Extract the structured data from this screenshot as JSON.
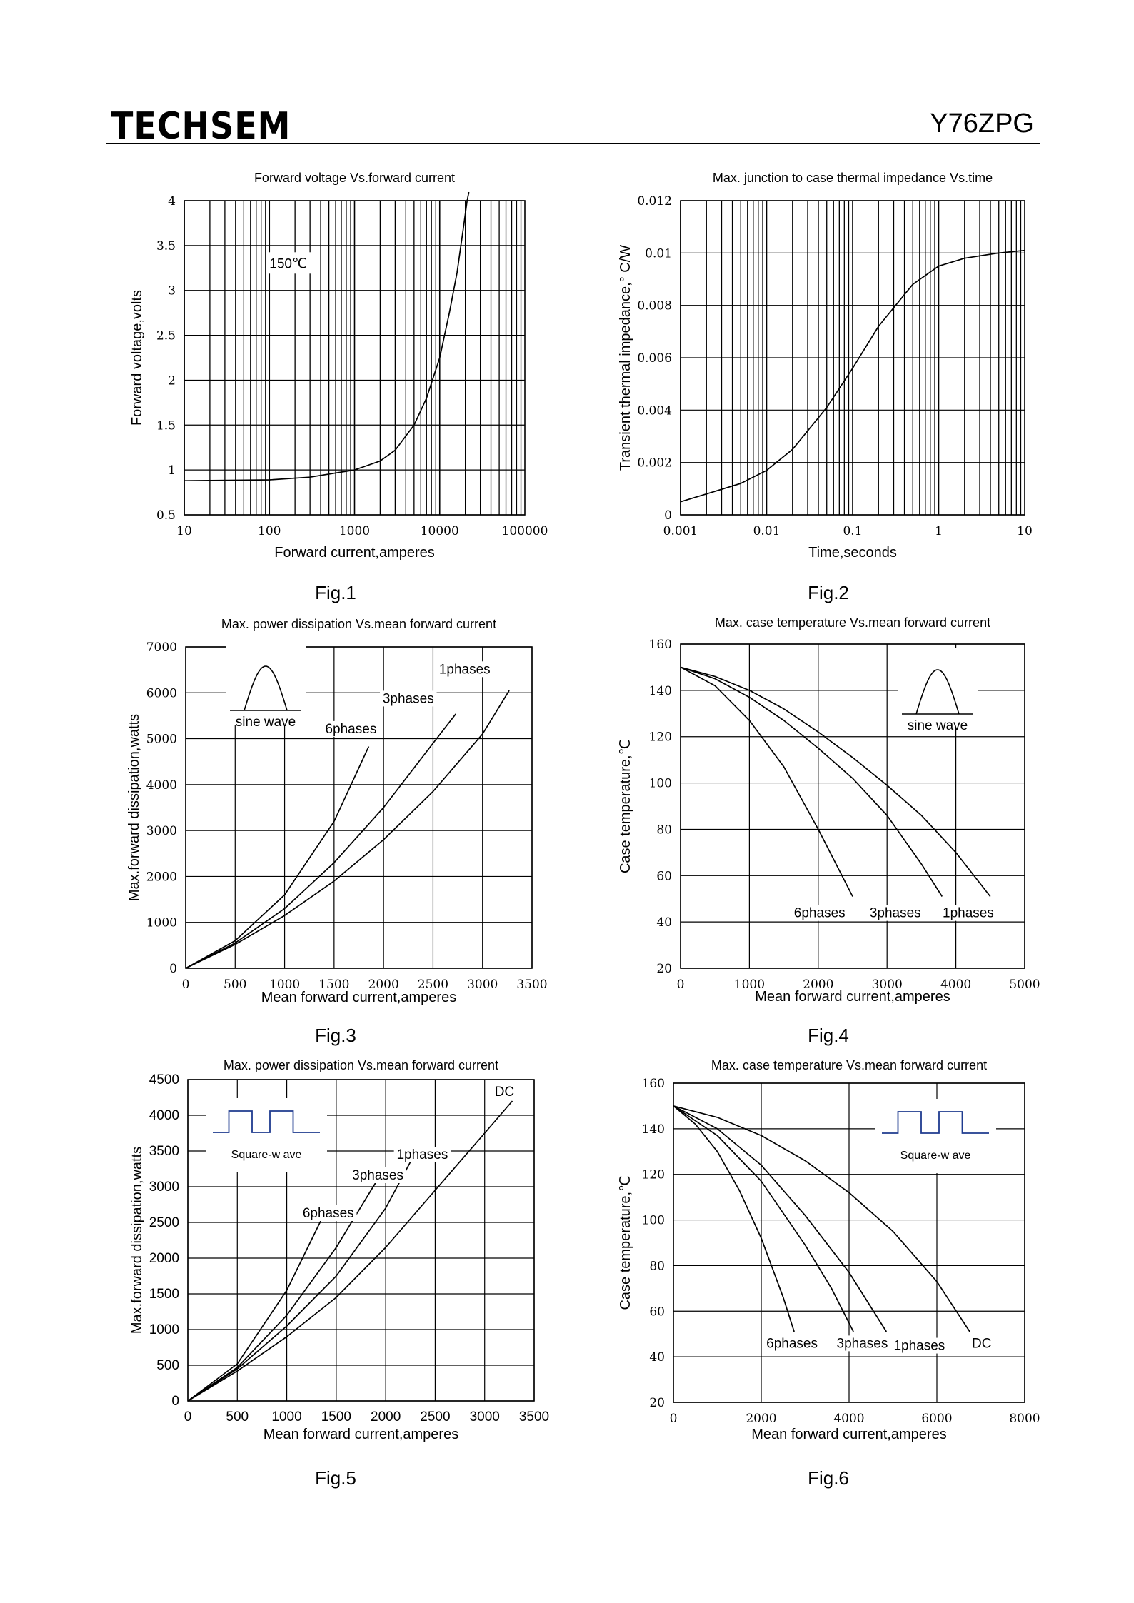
{
  "header": {
    "brand": "TECHSEM",
    "model": "Y76ZPG"
  },
  "chart_data": [
    {
      "id": "fig1",
      "type": "line",
      "caption": "Fig.1",
      "title": "Forward  voltage  Vs.forward  current",
      "xlabel": "Forward  current,amperes",
      "ylabel": "Forward  voltage,volts",
      "xscale": "log",
      "xlim": [
        10,
        100000
      ],
      "ylim": [
        0.5,
        4
      ],
      "xticks": [
        "10",
        "100",
        "1000",
        "10000",
        "100000"
      ],
      "yticks": [
        "0.5",
        "1",
        "1.5",
        "2",
        "2.5",
        "3",
        "3.5",
        "4"
      ],
      "grid": true,
      "annotations": [
        {
          "text": "150℃",
          "x": 100,
          "y": 3.25
        }
      ],
      "series": [
        {
          "name": "",
          "x": [
            10,
            100,
            300,
            1000,
            2000,
            3000,
            5000,
            7000,
            10000,
            13000,
            16000,
            19000,
            21000,
            22000
          ],
          "y": [
            0.88,
            0.89,
            0.92,
            1.0,
            1.1,
            1.22,
            1.5,
            1.8,
            2.25,
            2.75,
            3.2,
            3.7,
            4.0,
            4.15
          ]
        }
      ]
    },
    {
      "id": "fig2",
      "type": "line",
      "caption": "Fig.2",
      "title": "Max. junction  to  case  thermal  impedance  Vs.time",
      "xlabel": "Time,seconds",
      "ylabel": "Transient  thermal  impedance,°  C/W",
      "xscale": "log",
      "xlim": [
        0.001,
        10
      ],
      "ylim": [
        0,
        0.012
      ],
      "xticks": [
        "0.001",
        "0.01",
        "0.1",
        "1",
        "10"
      ],
      "yticks": [
        "0",
        "0.002",
        "0.004",
        "0.006",
        "0.008",
        "0.01",
        "0.012"
      ],
      "grid": true,
      "series": [
        {
          "name": "",
          "x": [
            0.001,
            0.002,
            0.005,
            0.01,
            0.02,
            0.05,
            0.1,
            0.2,
            0.5,
            1,
            2,
            5,
            10
          ],
          "y": [
            0.0005,
            0.0008,
            0.0012,
            0.0017,
            0.0025,
            0.0041,
            0.0056,
            0.0072,
            0.0088,
            0.0095,
            0.0098,
            0.01,
            0.0101
          ]
        }
      ]
    },
    {
      "id": "fig3",
      "type": "line",
      "caption": "Fig.3",
      "title": "Max. power  dissipation  Vs.mean  forward  current",
      "xlabel": "Mean  forward   current,amperes",
      "ylabel": "Max.forward  dissipation,watts",
      "xlim": [
        0,
        3500
      ],
      "ylim": [
        0,
        7000
      ],
      "xticks": [
        "0",
        "500",
        "1000",
        "1500",
        "2000",
        "2500",
        "3000",
        "3500"
      ],
      "yticks": [
        "0",
        "1000",
        "2000",
        "3000",
        "4000",
        "5000",
        "6000",
        "7000"
      ],
      "grid": true,
      "inset": {
        "shape": "sine",
        "label": "sine wave"
      },
      "series": [
        {
          "name": "6phases",
          "x": [
            0,
            500,
            1000,
            1500,
            1850
          ],
          "y": [
            0,
            600,
            1600,
            3200,
            4830
          ]
        },
        {
          "name": "3phases",
          "x": [
            0,
            500,
            1000,
            1500,
            2000,
            2500,
            2730
          ],
          "y": [
            0,
            550,
            1300,
            2300,
            3500,
            4900,
            5540
          ]
        },
        {
          "name": "1phases",
          "x": [
            0,
            500,
            1000,
            1500,
            2000,
            2500,
            3000,
            3270
          ],
          "y": [
            0,
            520,
            1150,
            1900,
            2800,
            3850,
            5100,
            6050
          ]
        }
      ],
      "labels": [
        {
          "text": "6phases",
          "x": 1670,
          "y": 5120
        },
        {
          "text": "3phases",
          "x": 2250,
          "y": 5780
        },
        {
          "text": "1phases",
          "x": 2820,
          "y": 6420
        }
      ]
    },
    {
      "id": "fig4",
      "type": "line",
      "caption": "Fig.4",
      "title": "Max. case  temperature  Vs.mean  forward  current",
      "xlabel": "Mean  forward   current,amperes",
      "ylabel": "Case  temperature,℃",
      "xlim": [
        0,
        5000
      ],
      "ylim": [
        20,
        160
      ],
      "xticks": [
        "0",
        "1000",
        "2000",
        "3000",
        "4000",
        "5000"
      ],
      "yticks": [
        "20",
        "40",
        "60",
        "80",
        "100",
        "120",
        "140",
        "160"
      ],
      "grid": true,
      "inset": {
        "shape": "sine",
        "label": "sine wave"
      },
      "series": [
        {
          "name": "6phases",
          "x": [
            0,
            500,
            1000,
            1500,
            2000,
            2500
          ],
          "y": [
            150,
            142,
            127,
            107,
            80,
            51
          ]
        },
        {
          "name": "3phases",
          "x": [
            0,
            500,
            1000,
            1500,
            2000,
            2500,
            3000,
            3500,
            3800
          ],
          "y": [
            150,
            145,
            137,
            127,
            115,
            102,
            86,
            65,
            51
          ]
        },
        {
          "name": "1phases",
          "x": [
            0,
            500,
            1000,
            1500,
            2000,
            2500,
            3000,
            3500,
            4000,
            4500
          ],
          "y": [
            150,
            146,
            140,
            132,
            122,
            111,
            99,
            86,
            70,
            51
          ]
        }
      ],
      "labels": [
        {
          "text": "6phases",
          "x": 2020,
          "y": 42
        },
        {
          "text": "3phases",
          "x": 3120,
          "y": 42
        },
        {
          "text": "1phases",
          "x": 4180,
          "y": 42
        }
      ]
    },
    {
      "id": "fig5",
      "type": "line",
      "caption": "Fig.5",
      "title": "Max. power  dissipation  Vs.mean  forward  current",
      "xlabel": "Mean  forward   current,amperes",
      "ylabel": "Max.forward  dissipation,watts",
      "xlim": [
        0,
        3500
      ],
      "ylim": [
        0,
        4500
      ],
      "xticks": [
        "0",
        "500",
        "1000",
        "1500",
        "2000",
        "2500",
        "3000",
        "3500"
      ],
      "yticks": [
        "0",
        "500",
        "1000",
        "1500",
        "2000",
        "2500",
        "3000",
        "3500",
        "4000",
        "4500"
      ],
      "grid": true,
      "inset": {
        "shape": "square",
        "label": "Square-w ave"
      },
      "series": [
        {
          "name": "6phases",
          "x": [
            0,
            500,
            1000,
            1350
          ],
          "y": [
            0,
            520,
            1550,
            2540
          ]
        },
        {
          "name": "3phases",
          "x": [
            0,
            500,
            1000,
            1500,
            1900
          ],
          "y": [
            0,
            470,
            1200,
            2150,
            3060
          ]
        },
        {
          "name": "1phases",
          "x": [
            0,
            500,
            1000,
            1500,
            2000,
            2270
          ],
          "y": [
            0,
            450,
            1050,
            1750,
            2700,
            3400
          ]
        },
        {
          "name": "DC",
          "x": [
            0,
            500,
            1000,
            1500,
            2000,
            2500,
            3000,
            3280
          ],
          "y": [
            0,
            420,
            900,
            1450,
            2150,
            2950,
            3750,
            4200
          ]
        }
      ],
      "labels": [
        {
          "text": "6phases",
          "x": 1420,
          "y": 2570
        },
        {
          "text": "3phases",
          "x": 1920,
          "y": 3100
        },
        {
          "text": "1phases",
          "x": 2370,
          "y": 3390
        },
        {
          "text": "DC",
          "x": 3200,
          "y": 4270
        }
      ]
    },
    {
      "id": "fig6",
      "type": "line",
      "caption": "Fig.6",
      "title": "Max. case  temperature  Vs.mean  forward  current",
      "xlabel": "Mean  forward   current,amperes",
      "ylabel": "Case  temperature,℃",
      "xlim": [
        0,
        8000
      ],
      "ylim": [
        20,
        160
      ],
      "xticks": [
        "0",
        "2000",
        "4000",
        "6000",
        "8000"
      ],
      "yticks": [
        "20",
        "40",
        "60",
        "80",
        "100",
        "120",
        "140",
        "160"
      ],
      "grid": true,
      "inset": {
        "shape": "square",
        "label": "Square-w ave"
      },
      "series": [
        {
          "name": "6phases",
          "x": [
            0,
            500,
            1000,
            1500,
            2000,
            2500,
            2750
          ],
          "y": [
            150,
            142,
            130,
            113,
            92,
            66,
            51
          ]
        },
        {
          "name": "3phases",
          "x": [
            0,
            1000,
            2000,
            3000,
            3600,
            4100
          ],
          "y": [
            150,
            137,
            117,
            89,
            70,
            51
          ]
        },
        {
          "name": "1phases",
          "x": [
            0,
            1000,
            2000,
            3000,
            4000,
            4850
          ],
          "y": [
            150,
            140,
            124,
            102,
            77,
            51
          ]
        },
        {
          "name": "DC",
          "x": [
            0,
            1000,
            2000,
            3000,
            4000,
            5000,
            6000,
            6750
          ],
          "y": [
            150,
            145,
            137,
            126,
            112,
            95,
            73,
            51
          ]
        }
      ],
      "labels": [
        {
          "text": "6phases",
          "x": 2700,
          "y": 44
        },
        {
          "text": "3phases",
          "x": 4300,
          "y": 44
        },
        {
          "text": "1phases",
          "x": 5600,
          "y": 43
        },
        {
          "text": "DC",
          "x": 7020,
          "y": 44
        }
      ]
    }
  ]
}
